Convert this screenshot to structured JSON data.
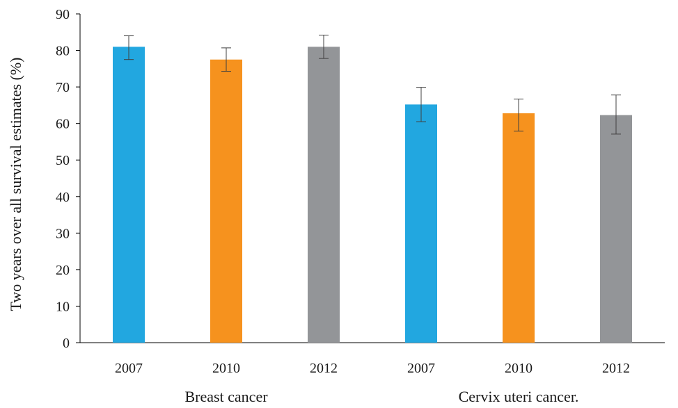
{
  "chart_data": {
    "type": "bar",
    "title": "",
    "ylabel": "Two years over all survival estimates (%)",
    "xlabel": "",
    "ylim": [
      0,
      90
    ],
    "yticks": [
      0,
      10,
      20,
      30,
      40,
      50,
      60,
      70,
      80,
      90
    ],
    "grid": false,
    "legend": "none",
    "groups": [
      {
        "label": "Breast cancer",
        "bars": [
          {
            "category": "2007",
            "value": 81,
            "err_low": 77.5,
            "err_high": 84,
            "color": "#22a7e0"
          },
          {
            "category": "2010",
            "value": 77.5,
            "err_low": 74.3,
            "err_high": 80.7,
            "color": "#f6921e"
          },
          {
            "category": "2012",
            "value": 81,
            "err_low": 77.8,
            "err_high": 84.2,
            "color": "#939598"
          }
        ]
      },
      {
        "label": "Cervix uteri cancer.",
        "bars": [
          {
            "category": "2007",
            "value": 65.2,
            "err_low": 60.5,
            "err_high": 69.9,
            "color": "#22a7e0"
          },
          {
            "category": "2010",
            "value": 62.8,
            "err_low": 57.9,
            "err_high": 66.7,
            "color": "#f6921e"
          },
          {
            "category": "2012",
            "value": 62.3,
            "err_low": 57.1,
            "err_high": 67.8,
            "color": "#939598"
          }
        ]
      }
    ],
    "colors": {
      "axis": "#000000",
      "error_bar": "#404040"
    }
  }
}
